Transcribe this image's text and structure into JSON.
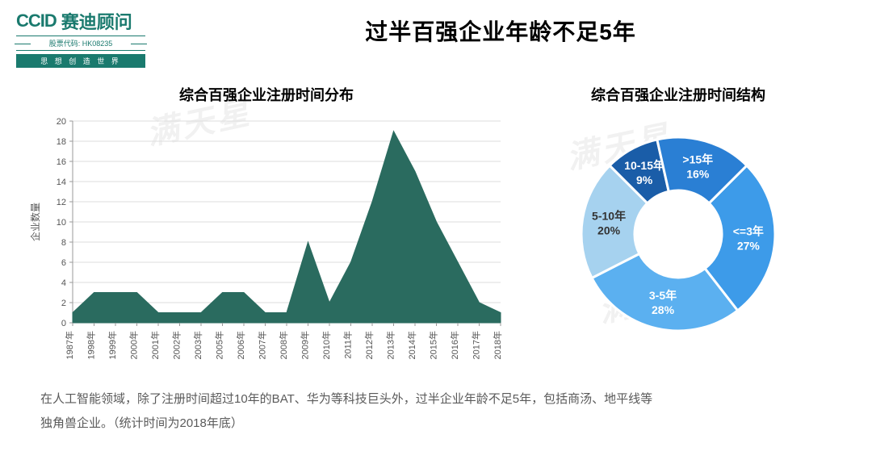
{
  "logo": {
    "brand_en": "CCID",
    "brand_cn": "赛迪顾问",
    "stock_code": "股票代码: HK08235",
    "tagline": "思 想 创 造 世 界"
  },
  "page_title": "过半百强企业年龄不足5年",
  "watermark_text": "满天星",
  "area_chart": {
    "title": "综合百强企业注册时间分布",
    "type": "area",
    "y_label": "企业数量",
    "ylim": [
      0,
      20
    ],
    "ytick_step": 2,
    "x_labels": [
      "1987年",
      "1998年",
      "1999年",
      "2000年",
      "2001年",
      "2002年",
      "2003年",
      "2005年",
      "2006年",
      "2007年",
      "2008年",
      "2009年",
      "2010年",
      "2011年",
      "2012年",
      "2013年",
      "2014年",
      "2015年",
      "2016年",
      "2017年",
      "2018年"
    ],
    "values": [
      1,
      3,
      3,
      3,
      1,
      1,
      1,
      3,
      3,
      1,
      1,
      8,
      2,
      6,
      12,
      19,
      15,
      10,
      6,
      2,
      1
    ],
    "fill_color": "#2a6b5f",
    "line_color": "#2a6b5f",
    "axis_color": "#999999",
    "grid_color": "#dddddd",
    "background_color": "#ffffff",
    "title_fontsize": 18,
    "label_fontsize": 11
  },
  "donut_chart": {
    "title": "综合百强企业注册时间结构",
    "type": "donut",
    "inner_radius_ratio": 0.45,
    "slices": [
      {
        "label": "<=3年",
        "pct": 27,
        "color": "#3d9be9",
        "text_color": "#ffffff"
      },
      {
        "label": "3-5年",
        "pct": 28,
        "color": "#5bb0f0",
        "text_color": "#ffffff"
      },
      {
        "label": "5-10年",
        "pct": 20,
        "color": "#a6d2ef",
        "text_color": "#5a5a5a"
      },
      {
        "label": "10-15年",
        "pct": 9,
        "color": "#1a5da8",
        "text_color": "#ffffff"
      },
      {
        "label": ">15年",
        "pct": 16,
        "color": "#2a7fd4",
        "text_color": "#ffffff"
      }
    ],
    "gap_color": "#ffffff",
    "gap_width": 3,
    "start_angle_deg": -45,
    "title_fontsize": 18
  },
  "footer": {
    "line1": "在人工智能领域，除了注册时间超过10年的BAT、华为等科技巨头外，过半企业年龄不足5年，包括商汤、地平线等",
    "line2": "独角兽企业。（统计时间为2018年底）"
  }
}
